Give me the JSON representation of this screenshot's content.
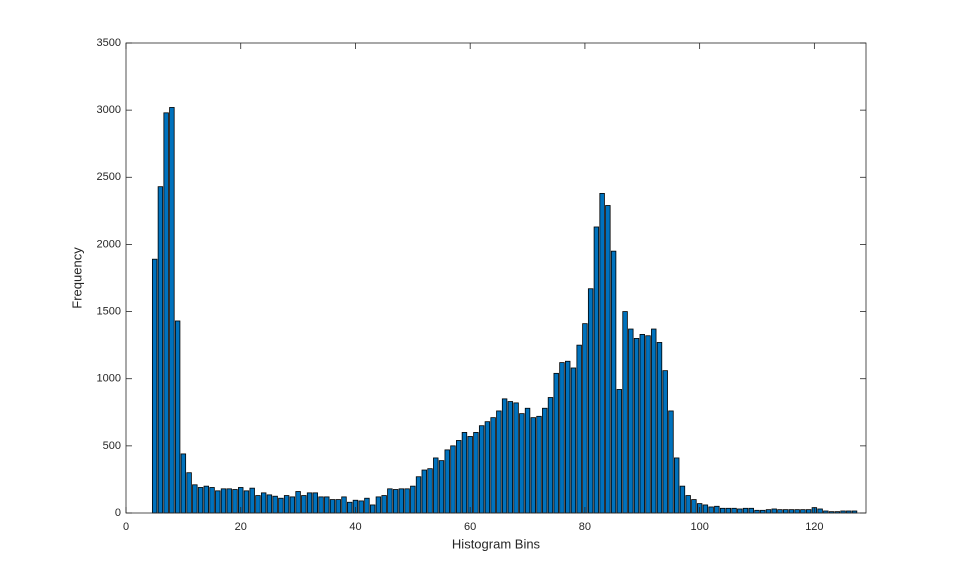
{
  "chart_data": {
    "type": "bar",
    "xlabel": "Histogram Bins",
    "ylabel": "Frequency",
    "x": [
      5,
      6,
      7,
      8,
      9,
      10,
      11,
      12,
      13,
      14,
      15,
      16,
      17,
      18,
      19,
      20,
      21,
      22,
      23,
      24,
      25,
      26,
      27,
      28,
      29,
      30,
      31,
      32,
      33,
      34,
      35,
      36,
      37,
      38,
      39,
      40,
      41,
      42,
      43,
      44,
      45,
      46,
      47,
      48,
      49,
      50,
      51,
      52,
      53,
      54,
      55,
      56,
      57,
      58,
      59,
      60,
      61,
      62,
      63,
      64,
      65,
      66,
      67,
      68,
      69,
      70,
      71,
      72,
      73,
      74,
      75,
      76,
      77,
      78,
      79,
      80,
      81,
      82,
      83,
      84,
      85,
      86,
      87,
      88,
      89,
      90,
      91,
      92,
      93,
      94,
      95,
      96,
      97,
      98,
      99,
      100,
      101,
      102,
      103,
      104,
      105,
      106,
      107,
      108,
      109,
      110,
      111,
      112,
      113,
      114,
      115,
      116,
      117,
      118,
      119,
      120,
      121,
      122,
      123,
      124,
      125,
      126,
      127
    ],
    "values": [
      1890,
      2430,
      2980,
      3020,
      1430,
      440,
      300,
      210,
      190,
      200,
      190,
      165,
      180,
      180,
      175,
      190,
      165,
      185,
      130,
      150,
      135,
      125,
      110,
      130,
      120,
      160,
      130,
      150,
      150,
      120,
      120,
      100,
      100,
      120,
      80,
      95,
      90,
      110,
      60,
      120,
      130,
      180,
      175,
      180,
      180,
      200,
      270,
      320,
      330,
      410,
      390,
      470,
      500,
      540,
      600,
      570,
      600,
      650,
      680,
      710,
      760,
      850,
      830,
      820,
      740,
      780,
      710,
      720,
      780,
      860,
      1040,
      1120,
      1130,
      1080,
      1250,
      1410,
      1670,
      2130,
      2380,
      2290,
      1950,
      920,
      1500,
      1370,
      1300,
      1330,
      1320,
      1370,
      1270,
      1060,
      760,
      410,
      200,
      130,
      100,
      70,
      60,
      45,
      50,
      35,
      35,
      35,
      30,
      35,
      35,
      20,
      20,
      25,
      30,
      25,
      25,
      25,
      25,
      25,
      25,
      40,
      30,
      15,
      10,
      10,
      15,
      15,
      15
    ],
    "color": "#0072bd",
    "edgecolor": "#000000",
    "xlim": [
      0,
      129
    ],
    "xticks": [
      0,
      20,
      40,
      60,
      80,
      100,
      120
    ],
    "ylim": [
      0,
      3500
    ],
    "yticks": [
      0,
      500,
      1000,
      1500,
      2000,
      2500,
      3000,
      3500
    ]
  }
}
